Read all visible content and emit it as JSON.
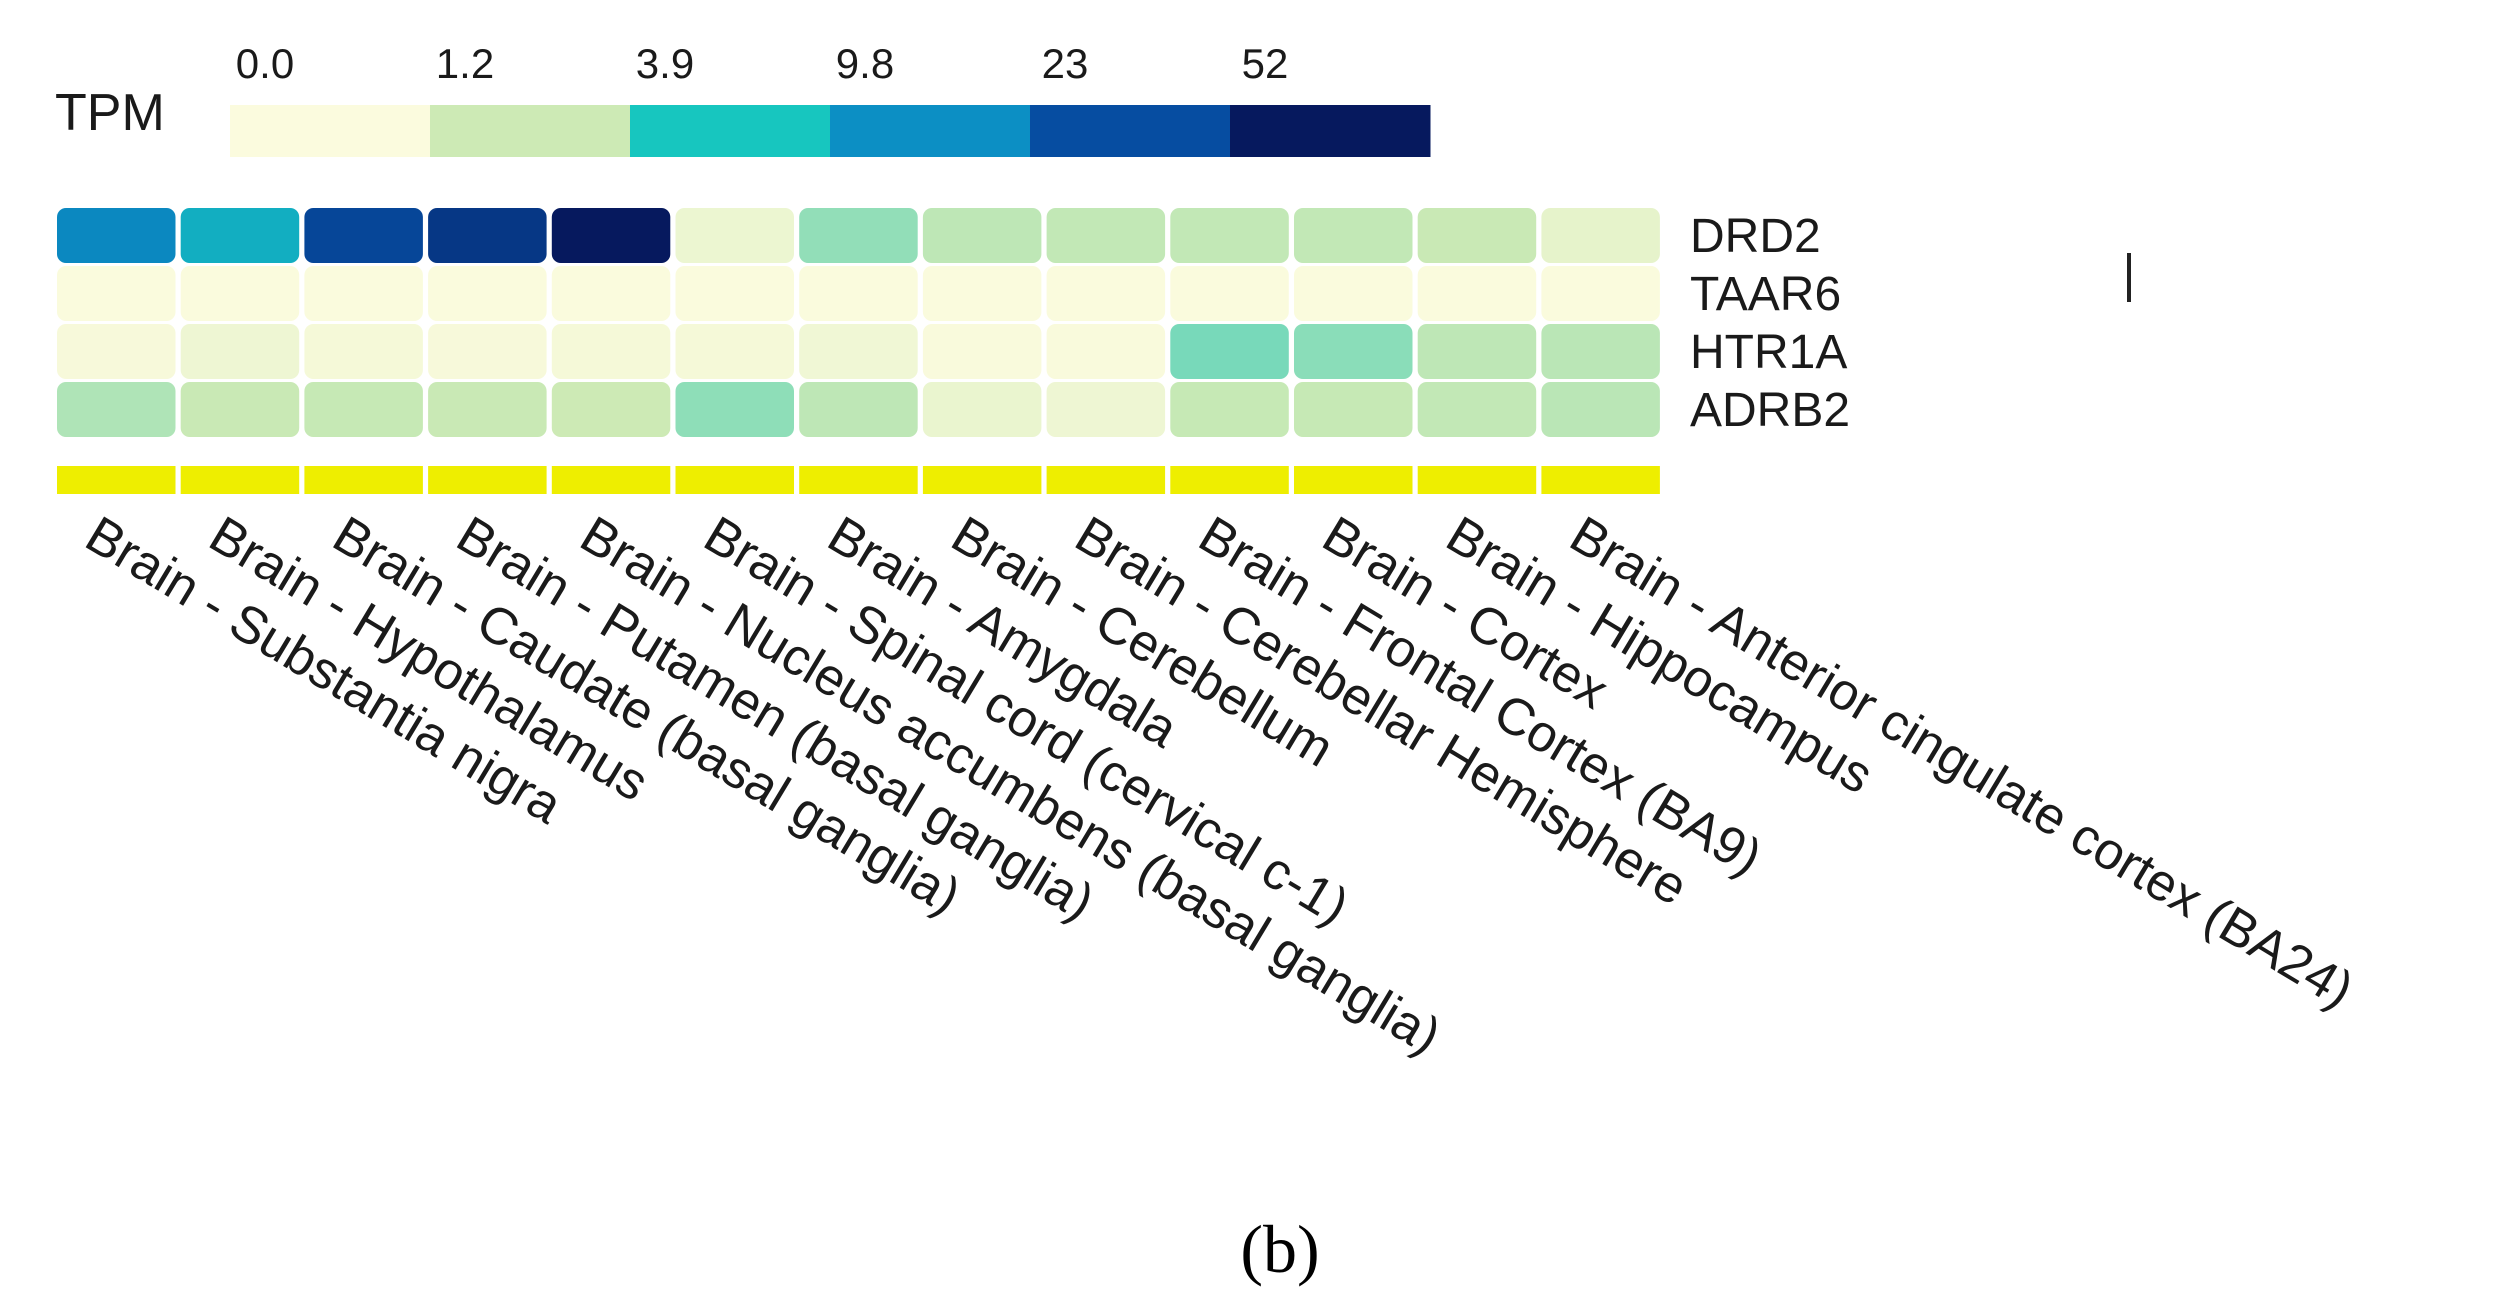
{
  "chart_data": {
    "type": "heatmap",
    "legend": {
      "title": "TPM",
      "tick_labels": [
        "0.0",
        "1.2",
        "3.9",
        "9.8",
        "23",
        "52"
      ],
      "bins": [
        {
          "from": 0.0,
          "to": 1.2,
          "color": "#fbfbde"
        },
        {
          "from": 1.2,
          "to": 3.9,
          "color": "#cdeab5"
        },
        {
          "from": 3.9,
          "to": 9.8,
          "color": "#17c6bf"
        },
        {
          "from": 9.8,
          "to": 23,
          "color": "#0c8fc4"
        },
        {
          "from": 23,
          "to": 52,
          "color": "#064da1"
        },
        {
          "from": 52,
          "to": null,
          "color": "#06195e"
        }
      ]
    },
    "genes": [
      "DRD2",
      "TAAR6",
      "HTR1A",
      "ADRB2"
    ],
    "tissues": [
      "Brain - Substantia nigra",
      "Brain - Hypothalamus",
      "Brain - Caudate (basal ganglia)",
      "Brain - Putamen (basal ganglia)",
      "Brain - Nucleus accumbens (basal ganglia)",
      "Brain - Spinal cord (cervical c-1)",
      "Brain - Amygdala",
      "Brain - Cerebellum",
      "Brain - Cerebellar Hemisphere",
      "Brain - Frontal Cortex (BA9)",
      "Brain - Cortex",
      "Brain - Hippocampus",
      "Brain - Anterior cingulate cortex (BA24)"
    ],
    "values": [
      [
        12.5,
        8.5,
        30.0,
        45.0,
        60.0,
        0.7,
        2.8,
        1.6,
        1.5,
        1.5,
        1.5,
        1.3,
        1.0
      ],
      [
        0.05,
        0.05,
        0.05,
        0.05,
        0.05,
        0.05,
        0.05,
        0.05,
        0.05,
        0.05,
        0.05,
        0.05,
        0.05
      ],
      [
        0.2,
        0.6,
        0.3,
        0.2,
        0.3,
        0.3,
        0.5,
        0.1,
        0.1,
        3.5,
        3.0,
        1.6,
        1.7
      ],
      [
        2.0,
        1.3,
        1.4,
        1.3,
        1.2,
        2.9,
        1.6,
        0.8,
        0.6,
        1.4,
        1.4,
        1.5,
        1.7
      ]
    ],
    "annotation_bar_color": "#eeee00",
    "title": "",
    "xlabel": "",
    "ylabel": ""
  },
  "panel_label": "(b)",
  "colors": {
    "text": "#1a1a1a",
    "background": "#ffffff"
  }
}
